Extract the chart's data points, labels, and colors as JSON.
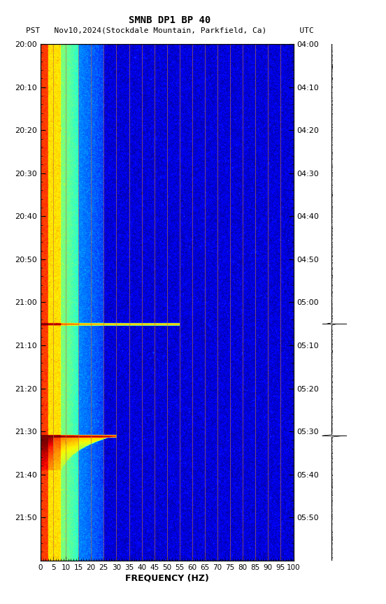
{
  "title_line1": "SMNB DP1 BP 40",
  "title_line2": "PST   Nov10,2024(Stockdale Mountain, Parkfield, Ca)       UTC",
  "xlabel": "FREQUENCY (HZ)",
  "freq_ticks": [
    0,
    5,
    10,
    15,
    20,
    25,
    30,
    35,
    40,
    45,
    50,
    55,
    60,
    65,
    70,
    75,
    80,
    85,
    90,
    95,
    100
  ],
  "time_left_labels": [
    "20:00",
    "20:10",
    "20:20",
    "20:30",
    "20:40",
    "20:50",
    "21:00",
    "21:10",
    "21:20",
    "21:30",
    "21:40",
    "21:50"
  ],
  "time_right_labels": [
    "04:00",
    "04:10",
    "04:20",
    "04:30",
    "04:40",
    "04:50",
    "05:00",
    "05:10",
    "05:20",
    "05:30",
    "05:40",
    "05:50"
  ],
  "time_positions": [
    0,
    10,
    20,
    30,
    40,
    50,
    60,
    70,
    80,
    90,
    100,
    110
  ],
  "freq_min": 0,
  "freq_max": 100,
  "time_min": 0,
  "time_max": 120,
  "bg_color": "#ffffff",
  "colormap": "jet",
  "grid_color": "#b87040",
  "grid_freq_lines": [
    5,
    10,
    15,
    20,
    25,
    30,
    35,
    40,
    45,
    50,
    55,
    60,
    65,
    70,
    75,
    80,
    85,
    90,
    95,
    100
  ],
  "event1_time": 65,
  "event1_freq_extent": 55,
  "event2_time": 91,
  "event2_freq_extent": 30,
  "seismogram_event_times": [
    65,
    91
  ]
}
